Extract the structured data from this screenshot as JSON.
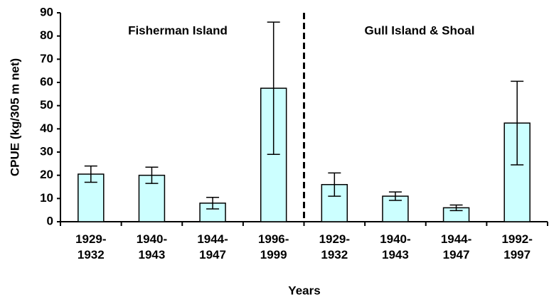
{
  "chart_data": {
    "type": "bar",
    "categories": [
      "1929-\n1932",
      "1940-\n1943",
      "1944-\n1947",
      "1996-\n1999",
      "1929-\n1932",
      "1940-\n1943",
      "1944-\n1947",
      "1992-\n1997"
    ],
    "values": [
      20.5,
      20,
      8,
      57.5,
      16,
      11,
      6,
      42.5
    ],
    "errors": [
      3.5,
      3.5,
      2.5,
      28.5,
      5,
      1.8,
      1.2,
      18
    ],
    "color": "#ccffff",
    "ylim": [
      0,
      90
    ],
    "yticks": [
      0,
      10,
      20,
      30,
      40,
      50,
      60,
      70,
      80,
      90
    ],
    "ylabel": "CPUE (kg/305 m net)",
    "xlabel": "Years",
    "annotations": [
      "Fisherman Island",
      "Gull Island & Shoal"
    ]
  }
}
